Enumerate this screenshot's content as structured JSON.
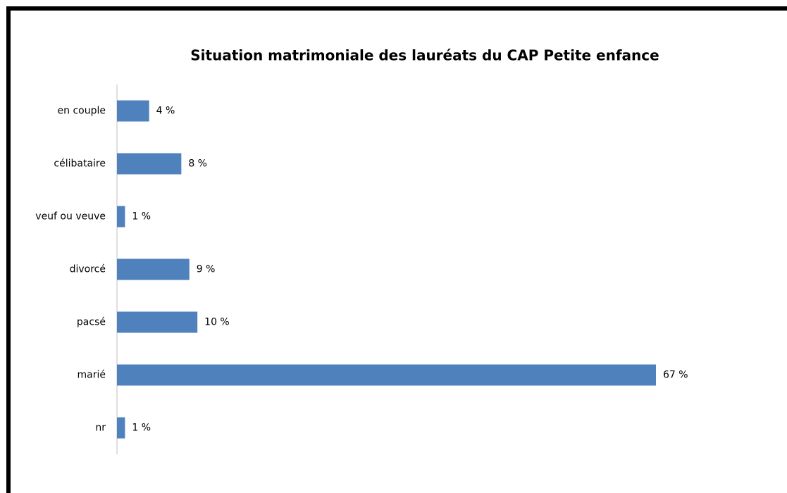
{
  "chart_data": {
    "type": "bar",
    "orientation": "horizontal",
    "title": "Situation matrimoniale des lauréats du CAP Petite enfance",
    "categories": [
      "en couple",
      "célibataire",
      "veuf ou veuve",
      "divorcé",
      "pacsé",
      "marié",
      "nr"
    ],
    "values": [
      4,
      8,
      1,
      9,
      10,
      67,
      1
    ],
    "value_labels": [
      "4 %",
      "8 %",
      "1 %",
      "9 %",
      "10 %",
      "67 %",
      "1 %"
    ],
    "color": "#4f81bd"
  }
}
